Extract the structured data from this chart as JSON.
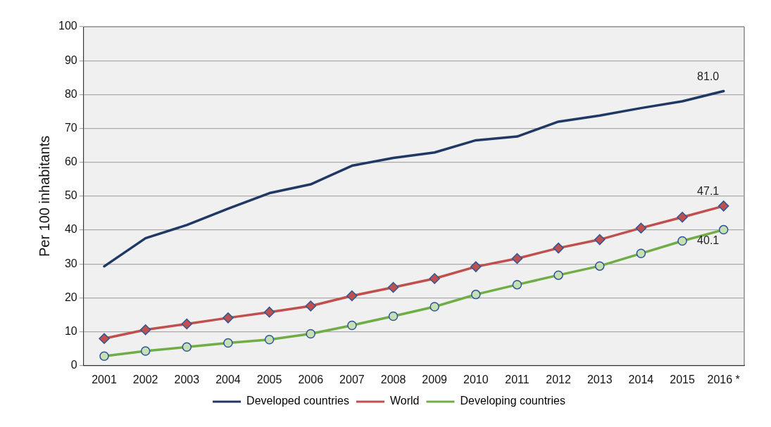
{
  "chart_data": {
    "type": "line",
    "ylabel": "Per 100 inhabitants",
    "categories": [
      "2001",
      "2002",
      "2003",
      "2004",
      "2005",
      "2006",
      "2007",
      "2008",
      "2009",
      "2010",
      "2011",
      "2012",
      "2013",
      "2014",
      "2015",
      "2016 *"
    ],
    "series": [
      {
        "name": "Developed countries",
        "color": "#1f3864",
        "marker": "none",
        "values": [
          29.3,
          37.6,
          41.5,
          46.3,
          50.9,
          53.5,
          59.0,
          61.3,
          62.9,
          66.5,
          67.6,
          72.0,
          73.8,
          76.0,
          78.0,
          81.0
        ],
        "value_labels": [
          null,
          null,
          null,
          null,
          null,
          null,
          null,
          null,
          null,
          null,
          null,
          null,
          null,
          null,
          null,
          "81.0"
        ]
      },
      {
        "name": "World",
        "color": "#c0504d",
        "marker": "diamond",
        "values": [
          8.0,
          10.6,
          12.3,
          14.1,
          15.8,
          17.6,
          20.6,
          23.1,
          25.7,
          29.2,
          31.6,
          34.7,
          37.2,
          40.6,
          43.8,
          47.1
        ],
        "value_labels": [
          null,
          null,
          null,
          null,
          null,
          null,
          null,
          null,
          null,
          null,
          null,
          null,
          null,
          null,
          null,
          "47.1"
        ]
      },
      {
        "name": "Developing countries",
        "color": "#70ad47",
        "marker": "circle",
        "values": [
          2.8,
          4.3,
          5.5,
          6.7,
          7.7,
          9.4,
          11.9,
          14.6,
          17.4,
          21.0,
          23.9,
          26.7,
          29.4,
          33.1,
          36.8,
          40.1
        ],
        "value_labels": [
          null,
          null,
          null,
          null,
          null,
          null,
          null,
          null,
          null,
          null,
          null,
          null,
          null,
          null,
          null,
          "40.1"
        ]
      }
    ],
    "ylim": [
      0,
      100
    ],
    "yticks": [
      0,
      10,
      20,
      30,
      40,
      50,
      60,
      70,
      80,
      90,
      100
    ],
    "grid": "y",
    "legend": "bottom"
  }
}
